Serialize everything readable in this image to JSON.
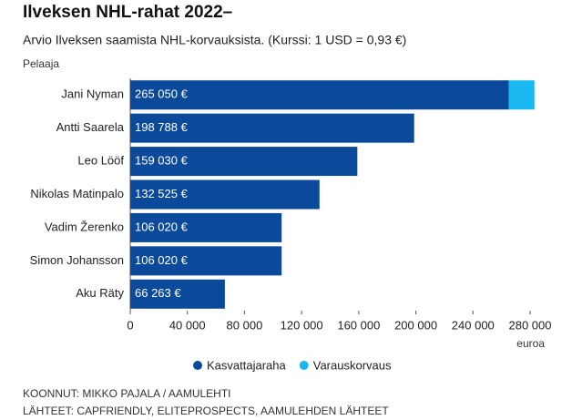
{
  "chart_data": {
    "type": "stacked-bar-horizontal",
    "title": "Ilveksen NHL-rahat 2022–",
    "subtitle": "Arvio Ilveksen saamista NHL-korvauksista. (Kurssi: 1 USD = 0,93 €)",
    "y_label": "Pelaaja",
    "x_label": "euroa",
    "categories": [
      "Jani Nyman",
      "Antti Saarela",
      "Leo Lööf",
      "Nikolas Matinpalo",
      "Vadim Žerenko",
      "Simon Johansson",
      "Aku Räty"
    ],
    "series": [
      {
        "name": "Kasvattajaraha",
        "color": "#0b4a9a",
        "values": [
          265050,
          198788,
          159030,
          132525,
          106020,
          106020,
          66263
        ],
        "value_labels": [
          "265 050 €",
          "198 788 €",
          "159 030 €",
          "132 525 €",
          "106 020 €",
          "106 020 €",
          "66 263 €"
        ]
      },
      {
        "name": "Varauskorvaus",
        "color": "#1ab8f0",
        "values": [
          18000,
          null,
          null,
          null,
          null,
          null,
          null
        ]
      }
    ],
    "xlim": [
      0,
      280000
    ],
    "xticks": [
      0,
      {
        "value": 40000,
        "label": "40 000"
      },
      {
        "value": 80000,
        "label": "80 000"
      },
      {
        "value": 120000,
        "label": "120 000"
      },
      {
        "value": 160000,
        "label": "160 000"
      },
      {
        "value": 200000,
        "label": "200 000"
      },
      {
        "value": 240000,
        "label": "240 000"
      },
      {
        "value": 280000,
        "label": "280 000"
      }
    ],
    "grid": false,
    "legend": "bottom",
    "credits": "KOONNUT: MIKKO PAJALA / AAMULEHTI",
    "sources": "LÄHTEET: CAPFRIENDLY, ELITEPROSPECTS, AAMULEHDEN LÄHTEET"
  }
}
